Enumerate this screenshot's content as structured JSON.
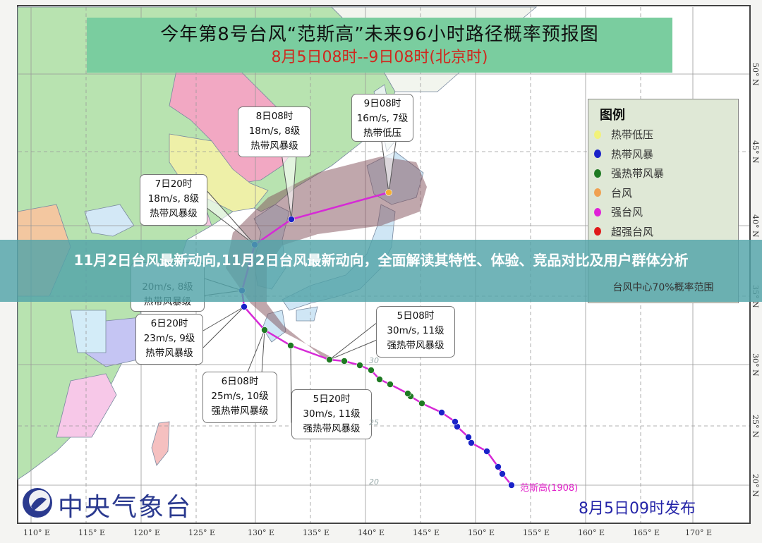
{
  "title": {
    "main": "今年第8号台风“范斯高”未来96小时路径概率预报图",
    "sub": "8月5日08时--9日08时(北京时)"
  },
  "overlay": {
    "headline": "11月2日台风最新动向,11月2日台风最新动向，全面解读其特性、体验、竞品对比及用户群体分析"
  },
  "forecast_points": [
    {
      "time": "9日08时",
      "wind": "16m/s, 7级",
      "level": "热带低压"
    },
    {
      "time": "8日08时",
      "wind": "18m/s, 8级",
      "level": "热带风暴级"
    },
    {
      "time": "7日20时",
      "wind": "18m/s, 8级",
      "level": "热带风暴级"
    },
    {
      "time": "",
      "wind": "20m/s, 8级",
      "level": "热带风暴级"
    },
    {
      "time": "6日20时",
      "wind": "23m/s, 9级",
      "level": "热带风暴级"
    },
    {
      "time": "6日08时",
      "wind": "25m/s, 10级",
      "level": "强热带风暴级"
    },
    {
      "time": "5日20时",
      "wind": "30m/s, 11级",
      "level": "强热带风暴级"
    },
    {
      "time": "5日08时",
      "wind": "30m/s, 11级",
      "level": "强热带风暴级"
    }
  ],
  "legend": {
    "title": "图例",
    "items": [
      {
        "label": "热带低压",
        "color": "#f2f27a"
      },
      {
        "label": "热带风暴",
        "color": "#1a22c8"
      },
      {
        "label": "强热带风暴",
        "color": "#1e7a22"
      },
      {
        "label": "台风",
        "color": "#f0a050"
      },
      {
        "label": "强台风",
        "color": "#e020d8"
      },
      {
        "label": "超强台风",
        "color": "#e01818"
      }
    ],
    "range_label": "台风中心70%概率范围"
  },
  "storm": {
    "name": "范斯高",
    "id": "(1908)",
    "track_color": "#d62ad6"
  },
  "logo": {
    "text": "中央气象台"
  },
  "issue_time": "8月5日09时发布",
  "axes": {
    "longitudes": [
      "110° E",
      "115° E",
      "120° E",
      "125° E",
      "130° E",
      "135° E",
      "140° E",
      "145° E",
      "150° E",
      "155° E",
      "160° E",
      "165° E",
      "170° E"
    ],
    "latitudes": [
      "50° N",
      "45° N",
      "40° N",
      "35° N",
      "30° N",
      "25° N",
      "20° N"
    ],
    "grid_numbers": [
      "30",
      "25",
      "20"
    ]
  }
}
